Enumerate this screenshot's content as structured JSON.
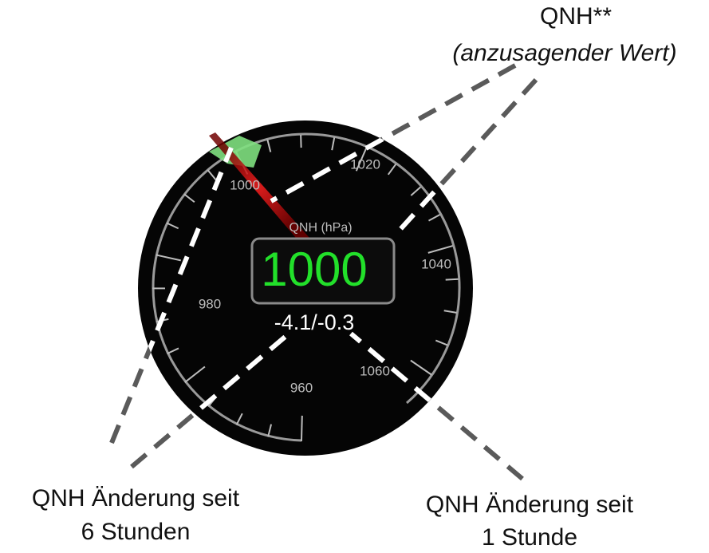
{
  "gauge": {
    "unit_label": "QNH (hPa)",
    "value": "1000",
    "change": "-4.1/-0.3",
    "scale_labels": [
      "960",
      "980",
      "1000",
      "1020",
      "1040",
      "1060"
    ]
  },
  "annotations": {
    "qnh": {
      "title": "QNH**",
      "subtitle": "(anzusagender Wert)"
    },
    "change_6h": {
      "line1": "QNH Änderung seit",
      "line2": "6 Stunden"
    },
    "change_1h": {
      "line1": "QNH Änderung seit",
      "line2": "1 Stunde"
    }
  }
}
